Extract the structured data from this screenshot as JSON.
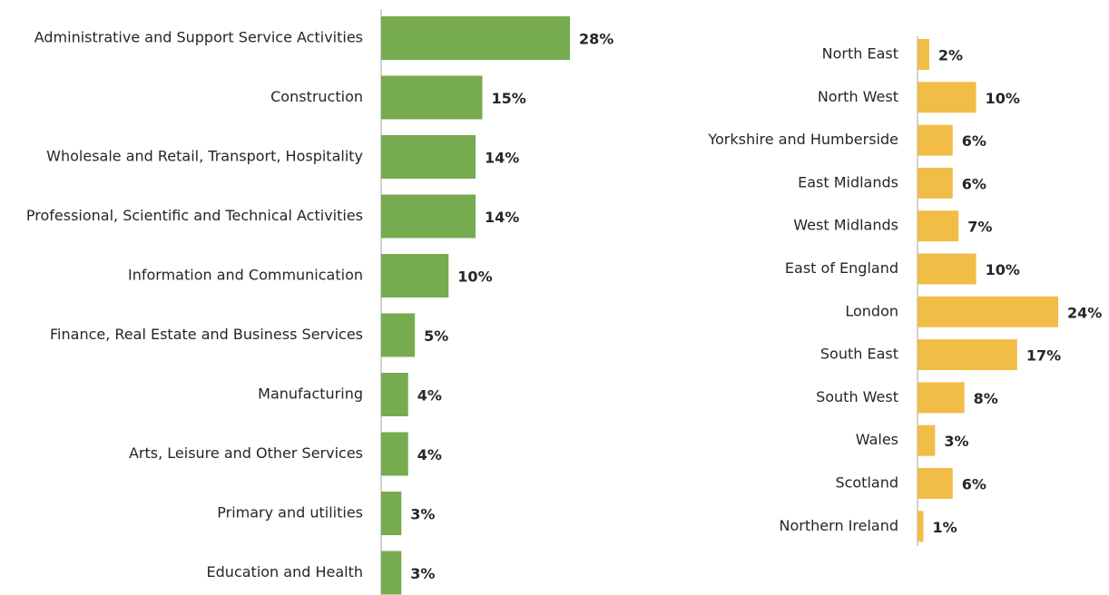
{
  "chart_data": [
    {
      "type": "barh",
      "color": "#76ab50",
      "categories": [
        "Administrative and Support Service Activities",
        "Construction",
        "Wholesale and Retail, Transport, Hospitality",
        "Professional, Scientific and Technical Activities",
        "Information and Communication",
        "Finance, Real Estate and Business Services",
        "Manufacturing",
        "Arts, Leisure and Other Services",
        "Primary and utilities",
        "Education and Health"
      ],
      "values": [
        28,
        15,
        14,
        14,
        10,
        5,
        4,
        4,
        3,
        3
      ],
      "value_labels": [
        "28%",
        "15%",
        "14%",
        "14%",
        "10%",
        "5%",
        "4%",
        "4%",
        "3%",
        "3%"
      ]
    },
    {
      "type": "barh",
      "color": "#f2bd47",
      "categories": [
        "North East",
        "North West",
        "Yorkshire and Humberside",
        "East Midlands",
        "West Midlands",
        "East of England",
        "London",
        "South East",
        "South West",
        "Wales",
        "Scotland",
        "Northern Ireland"
      ],
      "values": [
        2,
        10,
        6,
        6,
        7,
        10,
        24,
        17,
        8,
        3,
        6,
        1
      ],
      "value_labels": [
        "2%",
        "10%",
        "6%",
        "6%",
        "7%",
        "10%",
        "24%",
        "17%",
        "8%",
        "3%",
        "6%",
        "1%"
      ]
    }
  ]
}
